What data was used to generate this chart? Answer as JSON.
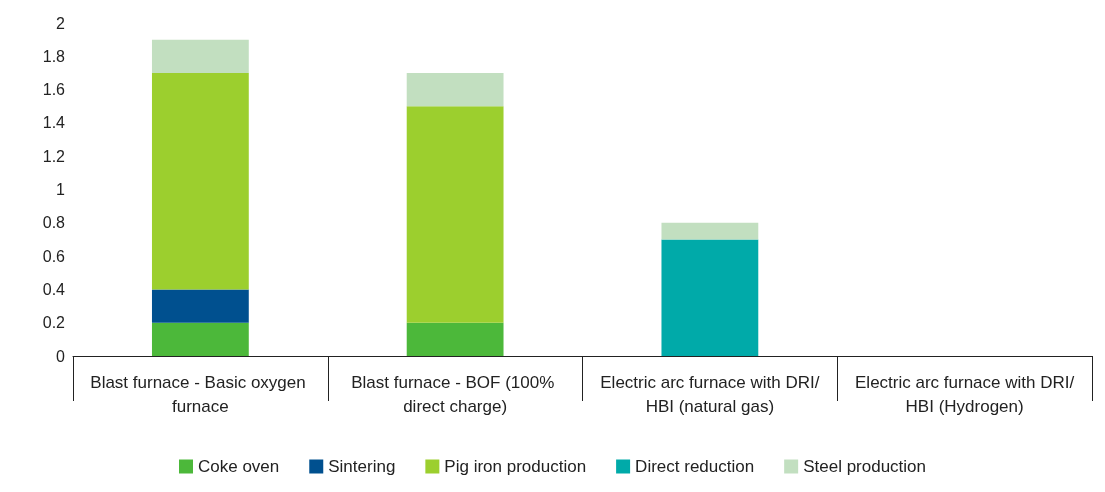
{
  "chart_data": {
    "type": "bar",
    "stacked": true,
    "categories": [
      "Blast furnace - Basic oxygen furnace",
      "Blast furnace - BOF (100% direct charge)",
      "Electric arc furnace with DRI/HBI (natural gas)",
      "Electric arc furnace with DRI/HBI (Hydrogen)"
    ],
    "series": [
      {
        "name": "Coke oven",
        "color": "#4cb83a",
        "values": [
          0.2,
          0.2,
          0,
          0
        ]
      },
      {
        "name": "Sintering",
        "color": "#00508f",
        "values": [
          0.2,
          0,
          0,
          0
        ]
      },
      {
        "name": "Pig iron production",
        "color": "#9ccf2e",
        "values": [
          1.3,
          1.3,
          0,
          0
        ]
      },
      {
        "name": "Direct reduction",
        "color": "#00aaa9",
        "values": [
          0,
          0,
          0.7,
          0
        ]
      },
      {
        "name": "Steel production",
        "color": "#c2dfc0",
        "values": [
          0.2,
          0.2,
          0.1,
          0
        ]
      }
    ],
    "ylim": [
      0,
      2
    ],
    "yticks": [
      0,
      0.2,
      0.4,
      0.6,
      0.8,
      1,
      1.2,
      1.4,
      1.6,
      1.8,
      2
    ],
    "grid": false,
    "legend": "bottom"
  }
}
